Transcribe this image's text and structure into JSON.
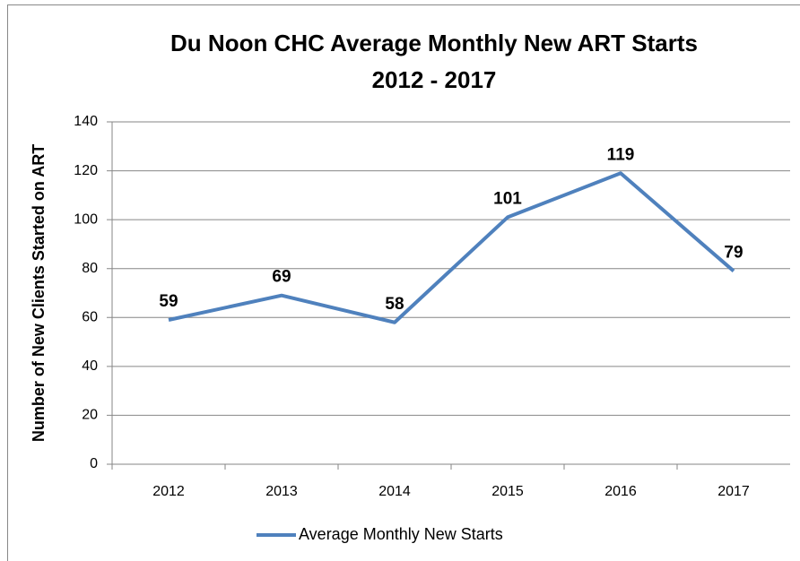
{
  "chart_data": {
    "type": "line",
    "title": [
      "Du Noon CHC Average Monthly New ART Starts",
      "2012 - 2017"
    ],
    "y_label": "Number of New Clients Started on ART",
    "categories": [
      "2012",
      "2013",
      "2014",
      "2015",
      "2016",
      "2017"
    ],
    "series": [
      {
        "name": "Average Monthly New Starts",
        "color": "#4f81bd",
        "values": [
          59,
          69,
          58,
          101,
          119,
          79
        ]
      }
    ],
    "ylim": [
      0,
      140
    ],
    "yticks": [
      0,
      20,
      40,
      60,
      80,
      100,
      120,
      140
    ],
    "grid": true,
    "legend": "bottom",
    "data_labels": true
  }
}
